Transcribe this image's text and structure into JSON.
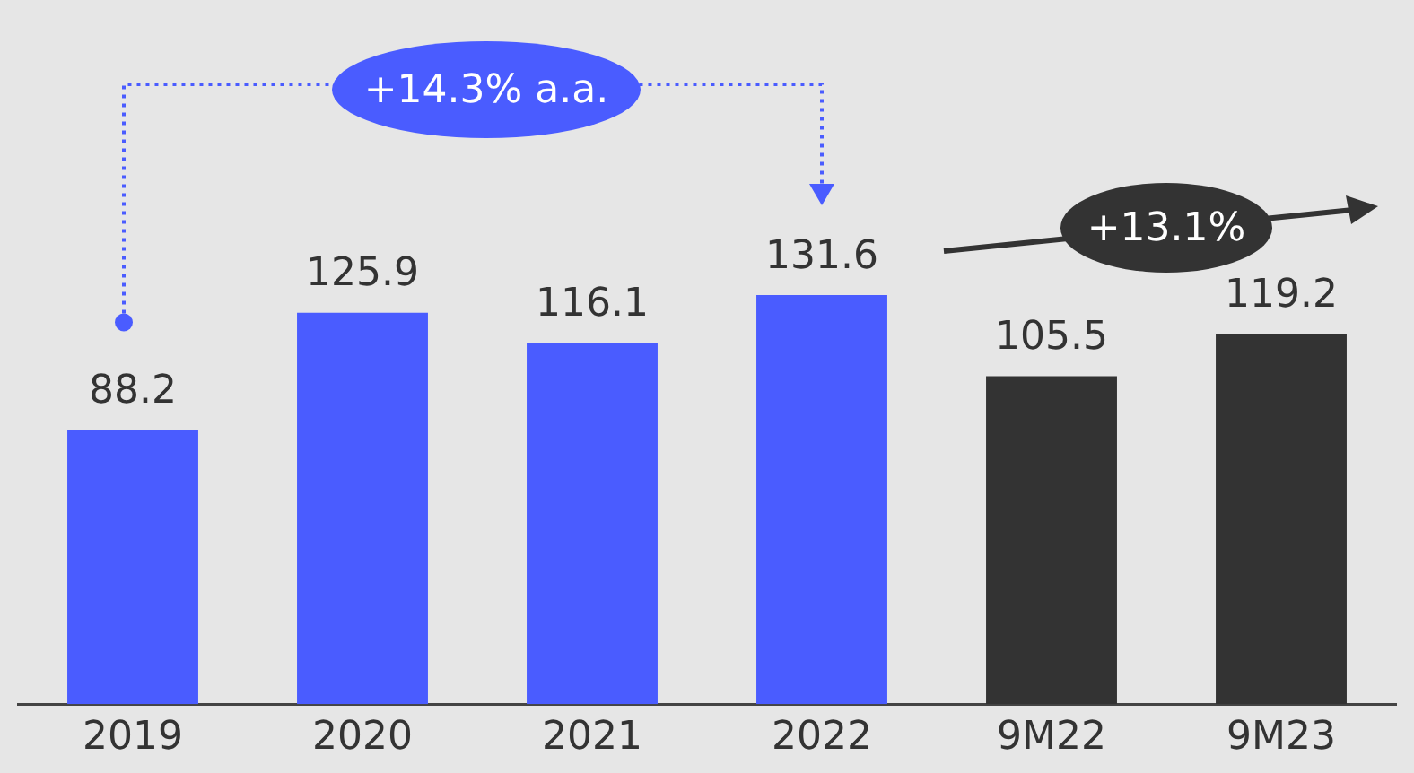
{
  "chart_data": {
    "type": "bar",
    "categories": [
      "2019",
      "2020",
      "2021",
      "2022",
      "9M22",
      "9M23"
    ],
    "values": [
      88.2,
      125.9,
      116.1,
      131.6,
      105.5,
      119.2
    ],
    "colors": [
      "#4a5cff",
      "#4a5cff",
      "#4a5cff",
      "#4a5cff",
      "#333333",
      "#333333"
    ],
    "data_labels": true,
    "grid": false,
    "legend": false,
    "annotations": [
      "+14.3% a.a.",
      "+13.1%"
    ]
  }
}
